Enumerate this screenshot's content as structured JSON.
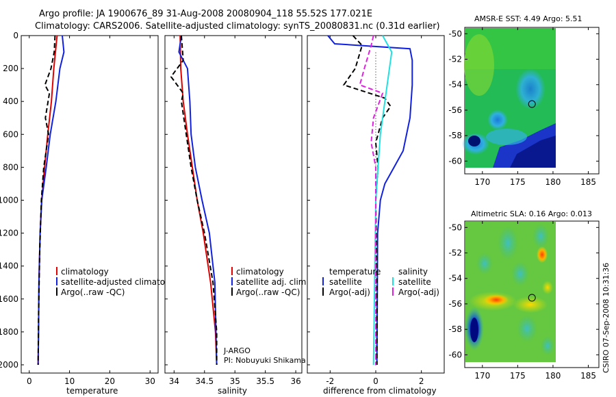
{
  "header": {
    "line1": "Argo profile: JA 1900676_89 31-Aug-2008 20080904_118 55.52S 177.021E",
    "line2": "Climatology: CARS2006. Satellite-adjusted climatology: synTS_20080831.nc (0.31d earlier)"
  },
  "footer": {
    "stamp": "CSIRO 07-Sep-2008 10:31:36"
  },
  "legends": {
    "temperature": [
      "climatology",
      "satellite-adjusted climatology",
      "Argo(..raw -QC)"
    ],
    "salinity": [
      "climatology",
      "satellite adj. clim.",
      "Argo(..raw -QC)"
    ],
    "difference": {
      "temp_header": "temperature",
      "sal_header": "salinity",
      "items": [
        "satellite",
        "Argo(-adj)",
        "satellite",
        "Argo(-adj)"
      ]
    }
  },
  "annotations": {
    "program": "J-ARGO",
    "pi": "PI: Nobuyuki Shikama"
  },
  "colors": {
    "climatology": "#e00000",
    "satellite": "#1020e0",
    "argo": "#000000",
    "sal_sat": "#20e0e0",
    "sal_argo": "#e020e0"
  },
  "chart_data": [
    {
      "type": "line",
      "id": "temperature",
      "title": "",
      "xlabel": "temperature",
      "ylabel": "",
      "xlim": [
        -2,
        32
      ],
      "ylim": [
        2050,
        0
      ],
      "xticks": [
        0,
        10,
        20,
        30
      ],
      "yticks": [
        0,
        200,
        400,
        600,
        800,
        1000,
        1200,
        1400,
        1600,
        1800,
        2000
      ],
      "series": [
        {
          "name": "climatology",
          "color": "#e00000",
          "dash": "",
          "x": [
            6.9,
            6.5,
            6.1,
            5.5,
            4.6,
            3.8,
            3.1,
            2.7,
            2.4,
            2.3,
            2.2
          ],
          "y": [
            0,
            100,
            200,
            400,
            600,
            800,
            1000,
            1200,
            1500,
            1800,
            2000
          ]
        },
        {
          "name": "satellite-adjusted climatology",
          "color": "#1020e0",
          "dash": "",
          "x": [
            8.2,
            8.6,
            7.6,
            6.6,
            5.2,
            4.2,
            3.1,
            2.7,
            2.4,
            2.3,
            2.2
          ],
          "y": [
            0,
            100,
            200,
            400,
            600,
            800,
            1000,
            1200,
            1500,
            1800,
            2000
          ]
        },
        {
          "name": "Argo(..raw -QC)",
          "color": "#000000",
          "dash": "7,4",
          "x": [
            6.4,
            6.2,
            5.4,
            3.9,
            5.0,
            4.0,
            4.8,
            3.6,
            3.0,
            2.6,
            2.3,
            2.2
          ],
          "y": [
            0,
            100,
            200,
            300,
            350,
            500,
            600,
            800,
            1000,
            1300,
            1700,
            2000
          ]
        }
      ]
    },
    {
      "type": "line",
      "id": "salinity",
      "title": "",
      "xlabel": "salinity",
      "ylabel": "",
      "xlim": [
        33.85,
        36.1
      ],
      "ylim": [
        2050,
        0
      ],
      "xticks": [
        34,
        34.5,
        35,
        35.5,
        36
      ],
      "yticks": [
        0,
        200,
        400,
        600,
        800,
        1000,
        1200,
        1400,
        1600,
        1800,
        2000
      ],
      "series": [
        {
          "name": "climatology",
          "color": "#e00000",
          "dash": "",
          "x": [
            34.1,
            34.11,
            34.15,
            34.22,
            34.3,
            34.38,
            34.48,
            34.6,
            34.68,
            34.7
          ],
          "y": [
            0,
            200,
            400,
            600,
            800,
            1000,
            1200,
            1500,
            1800,
            2000
          ]
        },
        {
          "name": "satellite adj. clim.",
          "color": "#1020e0",
          "dash": "",
          "x": [
            34.12,
            34.08,
            34.22,
            34.26,
            34.28,
            34.35,
            34.46,
            34.58,
            34.67,
            34.7
          ],
          "y": [
            0,
            100,
            200,
            400,
            600,
            800,
            1000,
            1200,
            1500,
            2000
          ]
        },
        {
          "name": "Argo(..raw -QC)",
          "color": "#000000",
          "dash": "7,4",
          "x": [
            34.12,
            34.15,
            33.95,
            34.05,
            34.15,
            34.12,
            34.2,
            34.28,
            34.38,
            34.5,
            34.64,
            34.7,
            34.7
          ],
          "y": [
            0,
            150,
            250,
            300,
            350,
            400,
            600,
            800,
            1000,
            1200,
            1500,
            1800,
            2000
          ]
        }
      ]
    },
    {
      "type": "line",
      "id": "difference",
      "title": "",
      "xlabel": "difference from climatology",
      "ylabel": "",
      "xlim": [
        -3,
        3
      ],
      "ylim": [
        2050,
        0
      ],
      "xticks": [
        -2,
        0,
        2
      ],
      "yticks": [
        0,
        200,
        400,
        600,
        800,
        1000,
        1200,
        1400,
        1600,
        1800,
        2000
      ],
      "zero_line": 0,
      "series": [
        {
          "name": "temperature satellite",
          "color": "#1020e0",
          "dash": "",
          "x": [
            -2.1,
            -1.8,
            1.5,
            1.6,
            1.6,
            1.5,
            1.2,
            0.8,
            0.4,
            0.2,
            0.08,
            0.05
          ],
          "y": [
            0,
            50,
            80,
            150,
            300,
            500,
            700,
            800,
            900,
            1000,
            1200,
            2000
          ]
        },
        {
          "name": "temperature Argo(-adj)",
          "color": "#000000",
          "dash": "7,4",
          "x": [
            -1.0,
            -0.6,
            -0.9,
            -1.4,
            0.4,
            0.65,
            0.3,
            0.0,
            0.1,
            0.0,
            0.05,
            0.05
          ],
          "y": [
            0,
            60,
            200,
            300,
            380,
            430,
            500,
            650,
            800,
            1000,
            1500,
            2000
          ]
        },
        {
          "name": "salinity satellite",
          "color": "#20e0e0",
          "dash": "",
          "x": [
            0.3,
            0.7,
            0.55,
            0.4,
            0.2,
            0.1,
            0.0,
            -0.05,
            -0.1
          ],
          "y": [
            0,
            100,
            250,
            400,
            600,
            800,
            1000,
            1500,
            2000
          ]
        },
        {
          "name": "salinity Argo(-adj)",
          "color": "#e020e0",
          "dash": "7,4",
          "x": [
            -0.1,
            -0.2,
            -0.5,
            -0.7,
            0.3,
            -0.1,
            -0.2,
            0.0,
            0.0,
            0.0
          ],
          "y": [
            0,
            60,
            200,
            300,
            350,
            500,
            650,
            800,
            1200,
            2000
          ]
        }
      ]
    },
    {
      "type": "heatmap",
      "id": "sst_map",
      "title": "AMSR-E SST: 4.49 Argo: 5.51",
      "xlabel": "",
      "ylabel": "",
      "xlim": [
        167.5,
        186.5
      ],
      "ylim": [
        -61,
        -49.5
      ],
      "xticks": [
        170,
        175,
        180,
        185
      ],
      "yticks": [
        -50,
        -52,
        -54,
        -56,
        -58,
        -60
      ],
      "data_extent": {
        "lon": [
          168.5,
          180
        ],
        "lat": [
          -60,
          -49.5
        ]
      },
      "marker": {
        "lon": 177.02,
        "lat": -55.52
      }
    },
    {
      "type": "heatmap",
      "id": "sla_map",
      "title": "Altimetric SLA: 0.16 Argo: 0.013",
      "xlabel": "",
      "ylabel": "",
      "xlim": [
        167.5,
        186.5
      ],
      "ylim": [
        -61,
        -49.5
      ],
      "xticks": [
        170,
        175,
        180,
        185
      ],
      "yticks": [
        -50,
        -52,
        -54,
        -56,
        -58,
        -60
      ],
      "data_extent": {
        "lon": [
          168.5,
          180
        ],
        "lat": [
          -60,
          -49.5
        ]
      },
      "marker": {
        "lon": 177.02,
        "lat": -55.52
      }
    }
  ]
}
